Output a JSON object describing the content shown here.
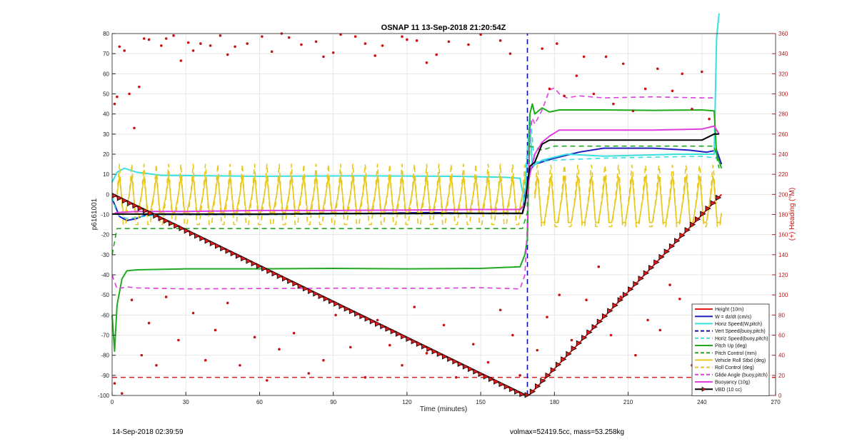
{
  "chart_data": {
    "type": "line",
    "title": "OSNAP 11 13-Sep-2018 21:20:54Z",
    "xlabel": "Time (minutes)",
    "ylabel": "p6161001",
    "y2label": "(+) Heading (°M)",
    "xlim": [
      0,
      270
    ],
    "ylim": [
      -100,
      80
    ],
    "y2lim": [
      0,
      360
    ],
    "xticks": [
      0,
      30,
      60,
      90,
      120,
      150,
      180,
      210,
      240,
      270
    ],
    "yticks": [
      -100,
      -90,
      -80,
      -70,
      -60,
      -50,
      -40,
      -30,
      -20,
      -10,
      0,
      10,
      20,
      30,
      40,
      50,
      60,
      70,
      80
    ],
    "y2ticks": [
      0,
      20,
      40,
      60,
      80,
      100,
      120,
      140,
      160,
      180,
      200,
      220,
      240,
      260,
      280,
      300,
      320,
      340,
      360
    ],
    "grid": true,
    "legend_position": "bottom-right",
    "series": [
      {
        "name": "Height (10m)",
        "color": "#e31a1c",
        "style": "solid",
        "points": [
          [
            0,
            0
          ],
          [
            168,
            -100
          ],
          [
            170,
            -99.5
          ],
          [
            248,
            0
          ]
        ]
      },
      {
        "name": "W = dz/dt (cm/s)",
        "color": "#1f1fbf",
        "style": "solid",
        "points": [
          [
            0,
            -2
          ],
          [
            3,
            -11
          ],
          [
            6,
            -13
          ],
          [
            10,
            -12
          ],
          [
            14,
            -10
          ],
          [
            30,
            -10
          ],
          [
            60,
            -10
          ],
          [
            100,
            -9.5
          ],
          [
            130,
            -9
          ],
          [
            150,
            -9.5
          ],
          [
            167,
            -9.5
          ],
          [
            168,
            0
          ],
          [
            170,
            12
          ],
          [
            172,
            15
          ],
          [
            180,
            18
          ],
          [
            190,
            21
          ],
          [
            200,
            23
          ],
          [
            220,
            23
          ],
          [
            235,
            22
          ],
          [
            242,
            21
          ],
          [
            246,
            22
          ],
          [
            248,
            15
          ]
        ]
      },
      {
        "name": "Horiz Speed(W,pitch)",
        "color": "#38e0e0",
        "style": "solid",
        "points": [
          [
            0,
            6
          ],
          [
            2,
            11
          ],
          [
            5,
            13
          ],
          [
            10,
            11
          ],
          [
            20,
            9.5
          ],
          [
            60,
            9
          ],
          [
            100,
            9.2
          ],
          [
            140,
            9
          ],
          [
            160,
            8.5
          ],
          [
            166,
            8
          ],
          [
            168,
            -5
          ],
          [
            169,
            20
          ],
          [
            170,
            35
          ],
          [
            171,
            14
          ],
          [
            175,
            17
          ],
          [
            185,
            20
          ],
          [
            200,
            19
          ],
          [
            230,
            20
          ],
          [
            245,
            20
          ],
          [
            246,
            78
          ],
          [
            247,
            90
          ]
        ]
      },
      {
        "name": "Vert Speed(buoy,pitch)",
        "color": "#0d0db8",
        "style": "dashed",
        "points": [
          [
            169,
            -100
          ],
          [
            169,
            80
          ]
        ]
      },
      {
        "name": "Horiz Speed(buoy,pitch)",
        "color": "#38e0e0",
        "style": "dashed",
        "points": [
          [
            0,
            -1
          ],
          [
            2,
            -10
          ],
          [
            6,
            -12
          ],
          [
            20,
            -10
          ],
          [
            60,
            -10
          ],
          [
            100,
            -9.8
          ],
          [
            140,
            -9.7
          ],
          [
            167,
            -9.5
          ],
          [
            170,
            40
          ],
          [
            172,
            16
          ],
          [
            180,
            17
          ],
          [
            200,
            18
          ],
          [
            240,
            19
          ],
          [
            246,
            18
          ]
        ]
      },
      {
        "name": "Pitch Up (deg)",
        "color": "#1faa1f",
        "style": "solid",
        "points": [
          [
            0,
            -60
          ],
          [
            1,
            -78
          ],
          [
            2,
            -55
          ],
          [
            4,
            -42
          ],
          [
            6,
            -38
          ],
          [
            10,
            -37.5
          ],
          [
            30,
            -37
          ],
          [
            60,
            -37
          ],
          [
            90,
            -36.8
          ],
          [
            120,
            -37
          ],
          [
            150,
            -36.8
          ],
          [
            166,
            -36
          ],
          [
            168,
            -30
          ],
          [
            169,
            -22
          ],
          [
            170,
            40
          ],
          [
            171,
            45
          ],
          [
            172,
            40
          ],
          [
            175,
            43
          ],
          [
            178,
            41
          ],
          [
            182,
            42
          ],
          [
            200,
            42
          ],
          [
            220,
            41.8
          ],
          [
            240,
            42
          ],
          [
            245,
            41.5
          ],
          [
            246,
            20
          ],
          [
            248,
            13
          ]
        ]
      },
      {
        "name": "Pitch Control (mm)",
        "color": "#1faa1f",
        "style": "dashed",
        "points": [
          [
            0,
            -30
          ],
          [
            2,
            -17
          ],
          [
            30,
            -17
          ],
          [
            60,
            -17
          ],
          [
            90,
            -17
          ],
          [
            120,
            -17
          ],
          [
            150,
            -17
          ],
          [
            167,
            -17
          ],
          [
            168,
            -13
          ],
          [
            169,
            -9
          ],
          [
            170,
            24
          ],
          [
            175,
            22
          ],
          [
            180,
            24
          ],
          [
            200,
            24
          ],
          [
            230,
            24
          ],
          [
            245,
            24
          ],
          [
            247,
            13
          ]
        ]
      },
      {
        "name": "Vehicle Roll Stbd (deg)",
        "color": "#e8c81c",
        "style": "solid",
        "oscillation": {
          "x_start": 2,
          "x_end": 168,
          "period": 5,
          "center": 0,
          "amplitude": 9
        },
        "oscillation2": {
          "x_start": 172,
          "x_end": 248,
          "period": 5.5,
          "center": -2,
          "amplitude": 12
        }
      },
      {
        "name": "Roll Control (deg)",
        "color": "#e8c81c",
        "style": "dashed",
        "oscillation": {
          "x_start": 2,
          "x_end": 168,
          "period": 5,
          "center": 0,
          "amplitude": 15
        },
        "oscillation2": {
          "x_start": 172,
          "x_end": 248,
          "period": 5.5,
          "center": 0,
          "amplitude": 16
        }
      },
      {
        "name": "Glide Angle (buoy,pitch)",
        "color": "#e03ce0",
        "style": "dashed",
        "points": [
          [
            0,
            -40
          ],
          [
            2,
            -47
          ],
          [
            6,
            -46
          ],
          [
            10,
            -46.5
          ],
          [
            30,
            -47
          ],
          [
            60,
            -46.8
          ],
          [
            100,
            -46.6
          ],
          [
            130,
            -46.7
          ],
          [
            150,
            -46.4
          ],
          [
            166,
            -47
          ],
          [
            168,
            -40
          ],
          [
            169,
            -15
          ],
          [
            170,
            30
          ],
          [
            171,
            38
          ],
          [
            172,
            35
          ],
          [
            175,
            42
          ],
          [
            178,
            52
          ],
          [
            180,
            53
          ],
          [
            182,
            50
          ],
          [
            185,
            48
          ],
          [
            190,
            49
          ],
          [
            200,
            48
          ],
          [
            220,
            48.5
          ],
          [
            240,
            48
          ],
          [
            245,
            48
          ],
          [
            246,
            48
          ]
        ]
      },
      {
        "name": "Buoyancy (10g)",
        "color": "#e03ce0",
        "style": "solid",
        "points": [
          [
            0,
            -10
          ],
          [
            2,
            -9
          ],
          [
            10,
            -8.5
          ],
          [
            30,
            -8.5
          ],
          [
            60,
            -8
          ],
          [
            90,
            -8
          ],
          [
            120,
            -7.8
          ],
          [
            150,
            -7.5
          ],
          [
            166,
            -7.5
          ],
          [
            168,
            -5
          ],
          [
            170,
            10
          ],
          [
            172,
            20
          ],
          [
            175,
            26
          ],
          [
            178,
            29
          ],
          [
            182,
            32
          ],
          [
            200,
            32
          ],
          [
            220,
            32
          ],
          [
            240,
            32.5
          ],
          [
            245,
            34
          ],
          [
            247,
            30
          ]
        ]
      },
      {
        "name": "VBD (10 cc)",
        "color": "#000000",
        "style": "solid",
        "marker": "triangle-markers-on-height",
        "points": [
          [
            0,
            -9.8
          ],
          [
            30,
            -9.8
          ],
          [
            60,
            -9.8
          ],
          [
            90,
            -9.5
          ],
          [
            120,
            -9.5
          ],
          [
            150,
            -9.4
          ],
          [
            167,
            -9.4
          ],
          [
            168,
            -5
          ],
          [
            169,
            5
          ],
          [
            170,
            14
          ],
          [
            172,
            16
          ],
          [
            175,
            25
          ],
          [
            178,
            27
          ],
          [
            200,
            27
          ],
          [
            240,
            27
          ],
          [
            245,
            30
          ],
          [
            247,
            30
          ]
        ]
      }
    ],
    "heading_points": {
      "name": "(+) Heading (°M)",
      "axis": "right",
      "color": "#cc1111",
      "points": [
        [
          1,
          290
        ],
        [
          3,
          347
        ],
        [
          5,
          343
        ],
        [
          7,
          300
        ],
        [
          9,
          266
        ],
        [
          11,
          307
        ],
        [
          13,
          355
        ],
        [
          2,
          297
        ],
        [
          15,
          354
        ],
        [
          20,
          348
        ],
        [
          22,
          355
        ],
        [
          25,
          358
        ],
        [
          28,
          333
        ],
        [
          31,
          351
        ],
        [
          33,
          343
        ],
        [
          36,
          350
        ],
        [
          40,
          348
        ],
        [
          44,
          358
        ],
        [
          47,
          339
        ],
        [
          50,
          347
        ],
        [
          55,
          350
        ],
        [
          61,
          357
        ],
        [
          65,
          342
        ],
        [
          69,
          360
        ],
        [
          72,
          356
        ],
        [
          77,
          349
        ],
        [
          83,
          352
        ],
        [
          86,
          337
        ],
        [
          90,
          341
        ],
        [
          93,
          359
        ],
        [
          99,
          357
        ],
        [
          103,
          350
        ],
        [
          107,
          338
        ],
        [
          110,
          348
        ],
        [
          118,
          357
        ],
        [
          120,
          354
        ],
        [
          124,
          353
        ],
        [
          128,
          331
        ],
        [
          132,
          339
        ],
        [
          137,
          352
        ],
        [
          145,
          349
        ],
        [
          150,
          359
        ],
        [
          158,
          353
        ],
        [
          162,
          340
        ],
        [
          1,
          12
        ],
        [
          4,
          2
        ],
        [
          8,
          95
        ],
        [
          12,
          40
        ],
        [
          15,
          72
        ],
        [
          18,
          30
        ],
        [
          22,
          98
        ],
        [
          27,
          55
        ],
        [
          33,
          82
        ],
        [
          38,
          35
        ],
        [
          42,
          65
        ],
        [
          47,
          92
        ],
        [
          52,
          30
        ],
        [
          58,
          58
        ],
        [
          63,
          15
        ],
        [
          68,
          46
        ],
        [
          74,
          62
        ],
        [
          80,
          22
        ],
        [
          86,
          35
        ],
        [
          91,
          80
        ],
        [
          97,
          48
        ],
        [
          103,
          18
        ],
        [
          108,
          75
        ],
        [
          113,
          50
        ],
        [
          118,
          30
        ],
        [
          123,
          88
        ],
        [
          128,
          42
        ],
        [
          135,
          70
        ],
        [
          140,
          18
        ],
        [
          147,
          51
        ],
        [
          153,
          33
        ],
        [
          158,
          85
        ],
        [
          163,
          60
        ],
        [
          166,
          20
        ],
        [
          175,
          345
        ],
        [
          178,
          305
        ],
        [
          181,
          350
        ],
        [
          184,
          298
        ],
        [
          189,
          318
        ],
        [
          192,
          337
        ],
        [
          196,
          300
        ],
        [
          201,
          337
        ],
        [
          204,
          290
        ],
        [
          208,
          330
        ],
        [
          212,
          283
        ],
        [
          217,
          305
        ],
        [
          222,
          325
        ],
        [
          228,
          303
        ],
        [
          232,
          320
        ],
        [
          236,
          285
        ],
        [
          240,
          322
        ],
        [
          243,
          275
        ],
        [
          173,
          45
        ],
        [
          177,
          78
        ],
        [
          182,
          100
        ],
        [
          187,
          55
        ],
        [
          193,
          95
        ],
        [
          198,
          128
        ],
        [
          203,
          60
        ],
        [
          207,
          98
        ],
        [
          213,
          40
        ],
        [
          218,
          75
        ],
        [
          223,
          65
        ],
        [
          227,
          110
        ],
        [
          231,
          96
        ],
        [
          236,
          30
        ],
        [
          241,
          82
        ],
        [
          244,
          55
        ]
      ]
    },
    "reference_line": {
      "y": -91,
      "color": "#e31a1c",
      "style": "dashed",
      "x": [
        0,
        270
      ]
    }
  },
  "footer": {
    "timestamp": "14-Sep-2018 02:39:59",
    "info": "volmax=52419.5cc, mass=53.258kg"
  }
}
